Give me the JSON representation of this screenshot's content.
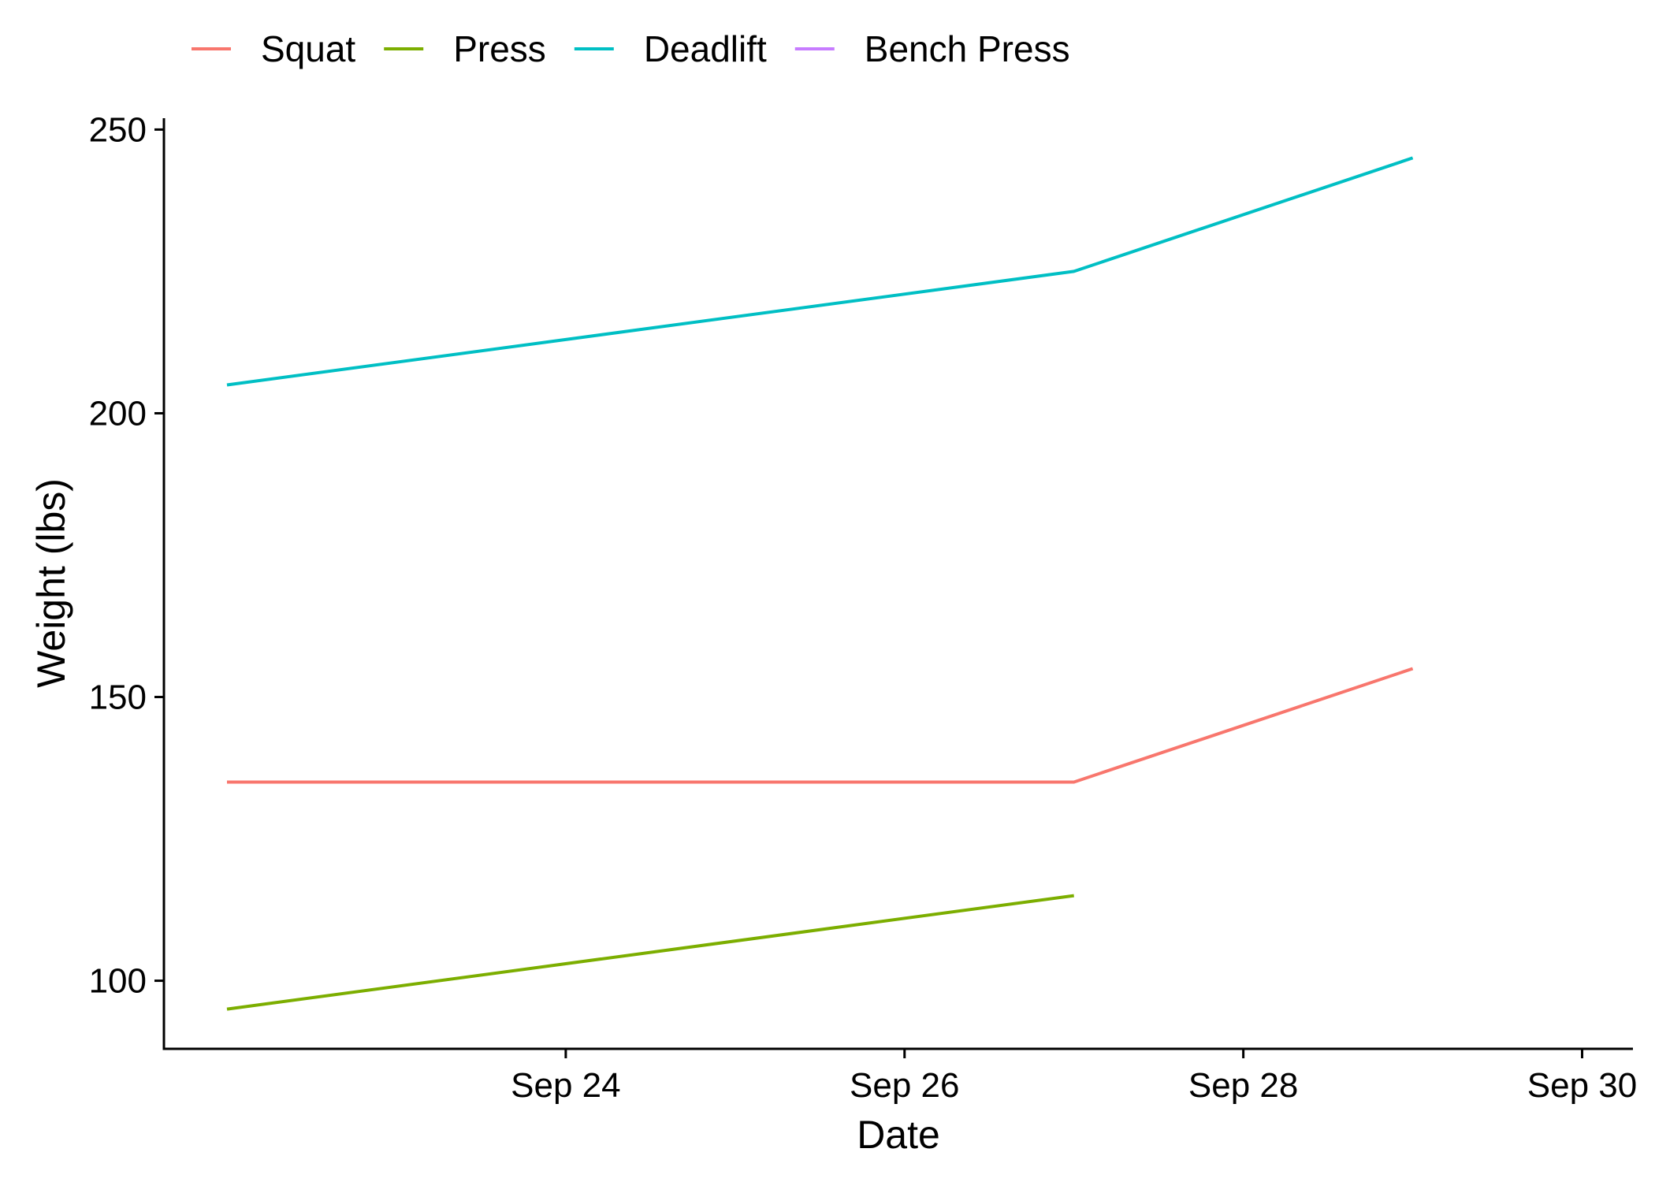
{
  "chart_data": {
    "type": "line",
    "xlabel": "Date",
    "ylabel": "Weight (lbs)",
    "x_type": "date",
    "xlim": [
      "2020-09-22",
      "2020-09-30"
    ],
    "ylim": [
      88,
      252
    ],
    "x_ticks": [
      {
        "date": "2020-09-24",
        "label": "Sep 24"
      },
      {
        "date": "2020-09-26",
        "label": "Sep 26"
      },
      {
        "date": "2020-09-28",
        "label": "Sep 28"
      },
      {
        "date": "2020-09-30",
        "label": "Sep 30"
      }
    ],
    "y_ticks": [
      100,
      150,
      200,
      250
    ],
    "grid": false,
    "legend_position": "top",
    "series": [
      {
        "name": "Squat",
        "color": "#F8766D",
        "points": [
          {
            "x": "2020-09-22",
            "y": 135
          },
          {
            "x": "2020-09-27",
            "y": 135
          },
          {
            "x": "2020-09-29",
            "y": 155
          }
        ]
      },
      {
        "name": "Press",
        "color": "#7CAE00",
        "points": [
          {
            "x": "2020-09-22",
            "y": 95
          },
          {
            "x": "2020-09-27",
            "y": 115
          }
        ]
      },
      {
        "name": "Deadlift",
        "color": "#00BFC4",
        "points": [
          {
            "x": "2020-09-22",
            "y": 205
          },
          {
            "x": "2020-09-27",
            "y": 225
          },
          {
            "x": "2020-09-29",
            "y": 245
          }
        ]
      },
      {
        "name": "Bench Press",
        "color": "#C77CFF",
        "points": []
      }
    ]
  }
}
